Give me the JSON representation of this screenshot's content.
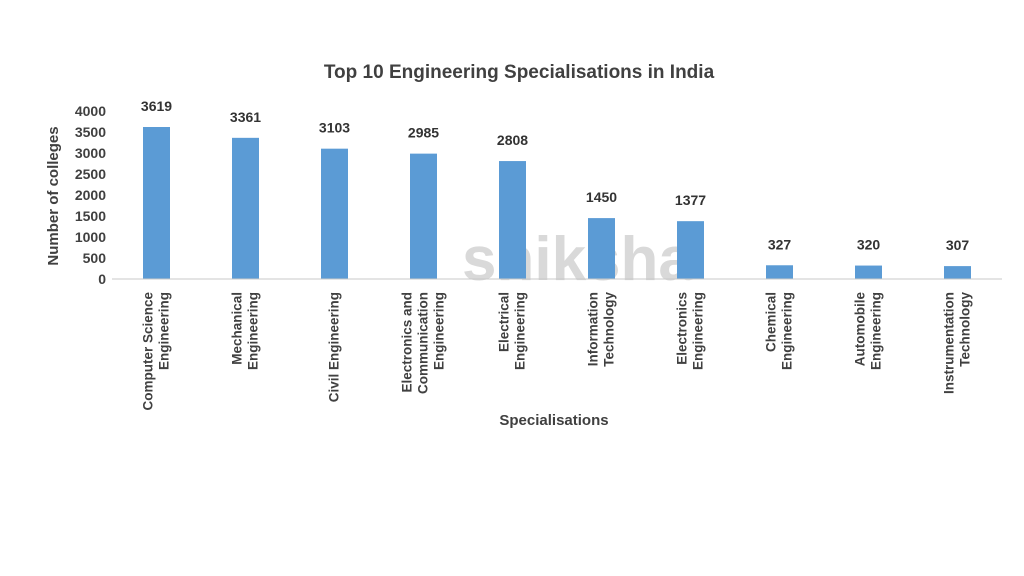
{
  "chart_data": {
    "type": "bar",
    "title": "Top 10 Engineering Specialisations in India",
    "xlabel": "Specialisations",
    "ylabel": "Number of colleges",
    "ylim": [
      0,
      4000
    ],
    "yticks": [
      0,
      500,
      1000,
      1500,
      2000,
      2500,
      3000,
      3500,
      4000
    ],
    "grid": false,
    "legend": "none",
    "bar_color": "#5b9bd5",
    "watermark": "shiksha",
    "categories": [
      [
        "Computer Science",
        "Engineering"
      ],
      [
        "Mechanical",
        "Engineering"
      ],
      [
        "Civil Engineering"
      ],
      [
        "Electronics and",
        "Communication",
        "Engineering"
      ],
      [
        "Electrical",
        "Engineering"
      ],
      [
        "Information",
        "Technology"
      ],
      [
        "Electronics",
        "Engineering"
      ],
      [
        "Chemical",
        "Engineering"
      ],
      [
        "Automobile",
        "Engineering"
      ],
      [
        "Instrumentation",
        "Technology"
      ]
    ],
    "values": [
      3619,
      3361,
      3103,
      2985,
      2808,
      1450,
      1377,
      327,
      320,
      307
    ]
  }
}
